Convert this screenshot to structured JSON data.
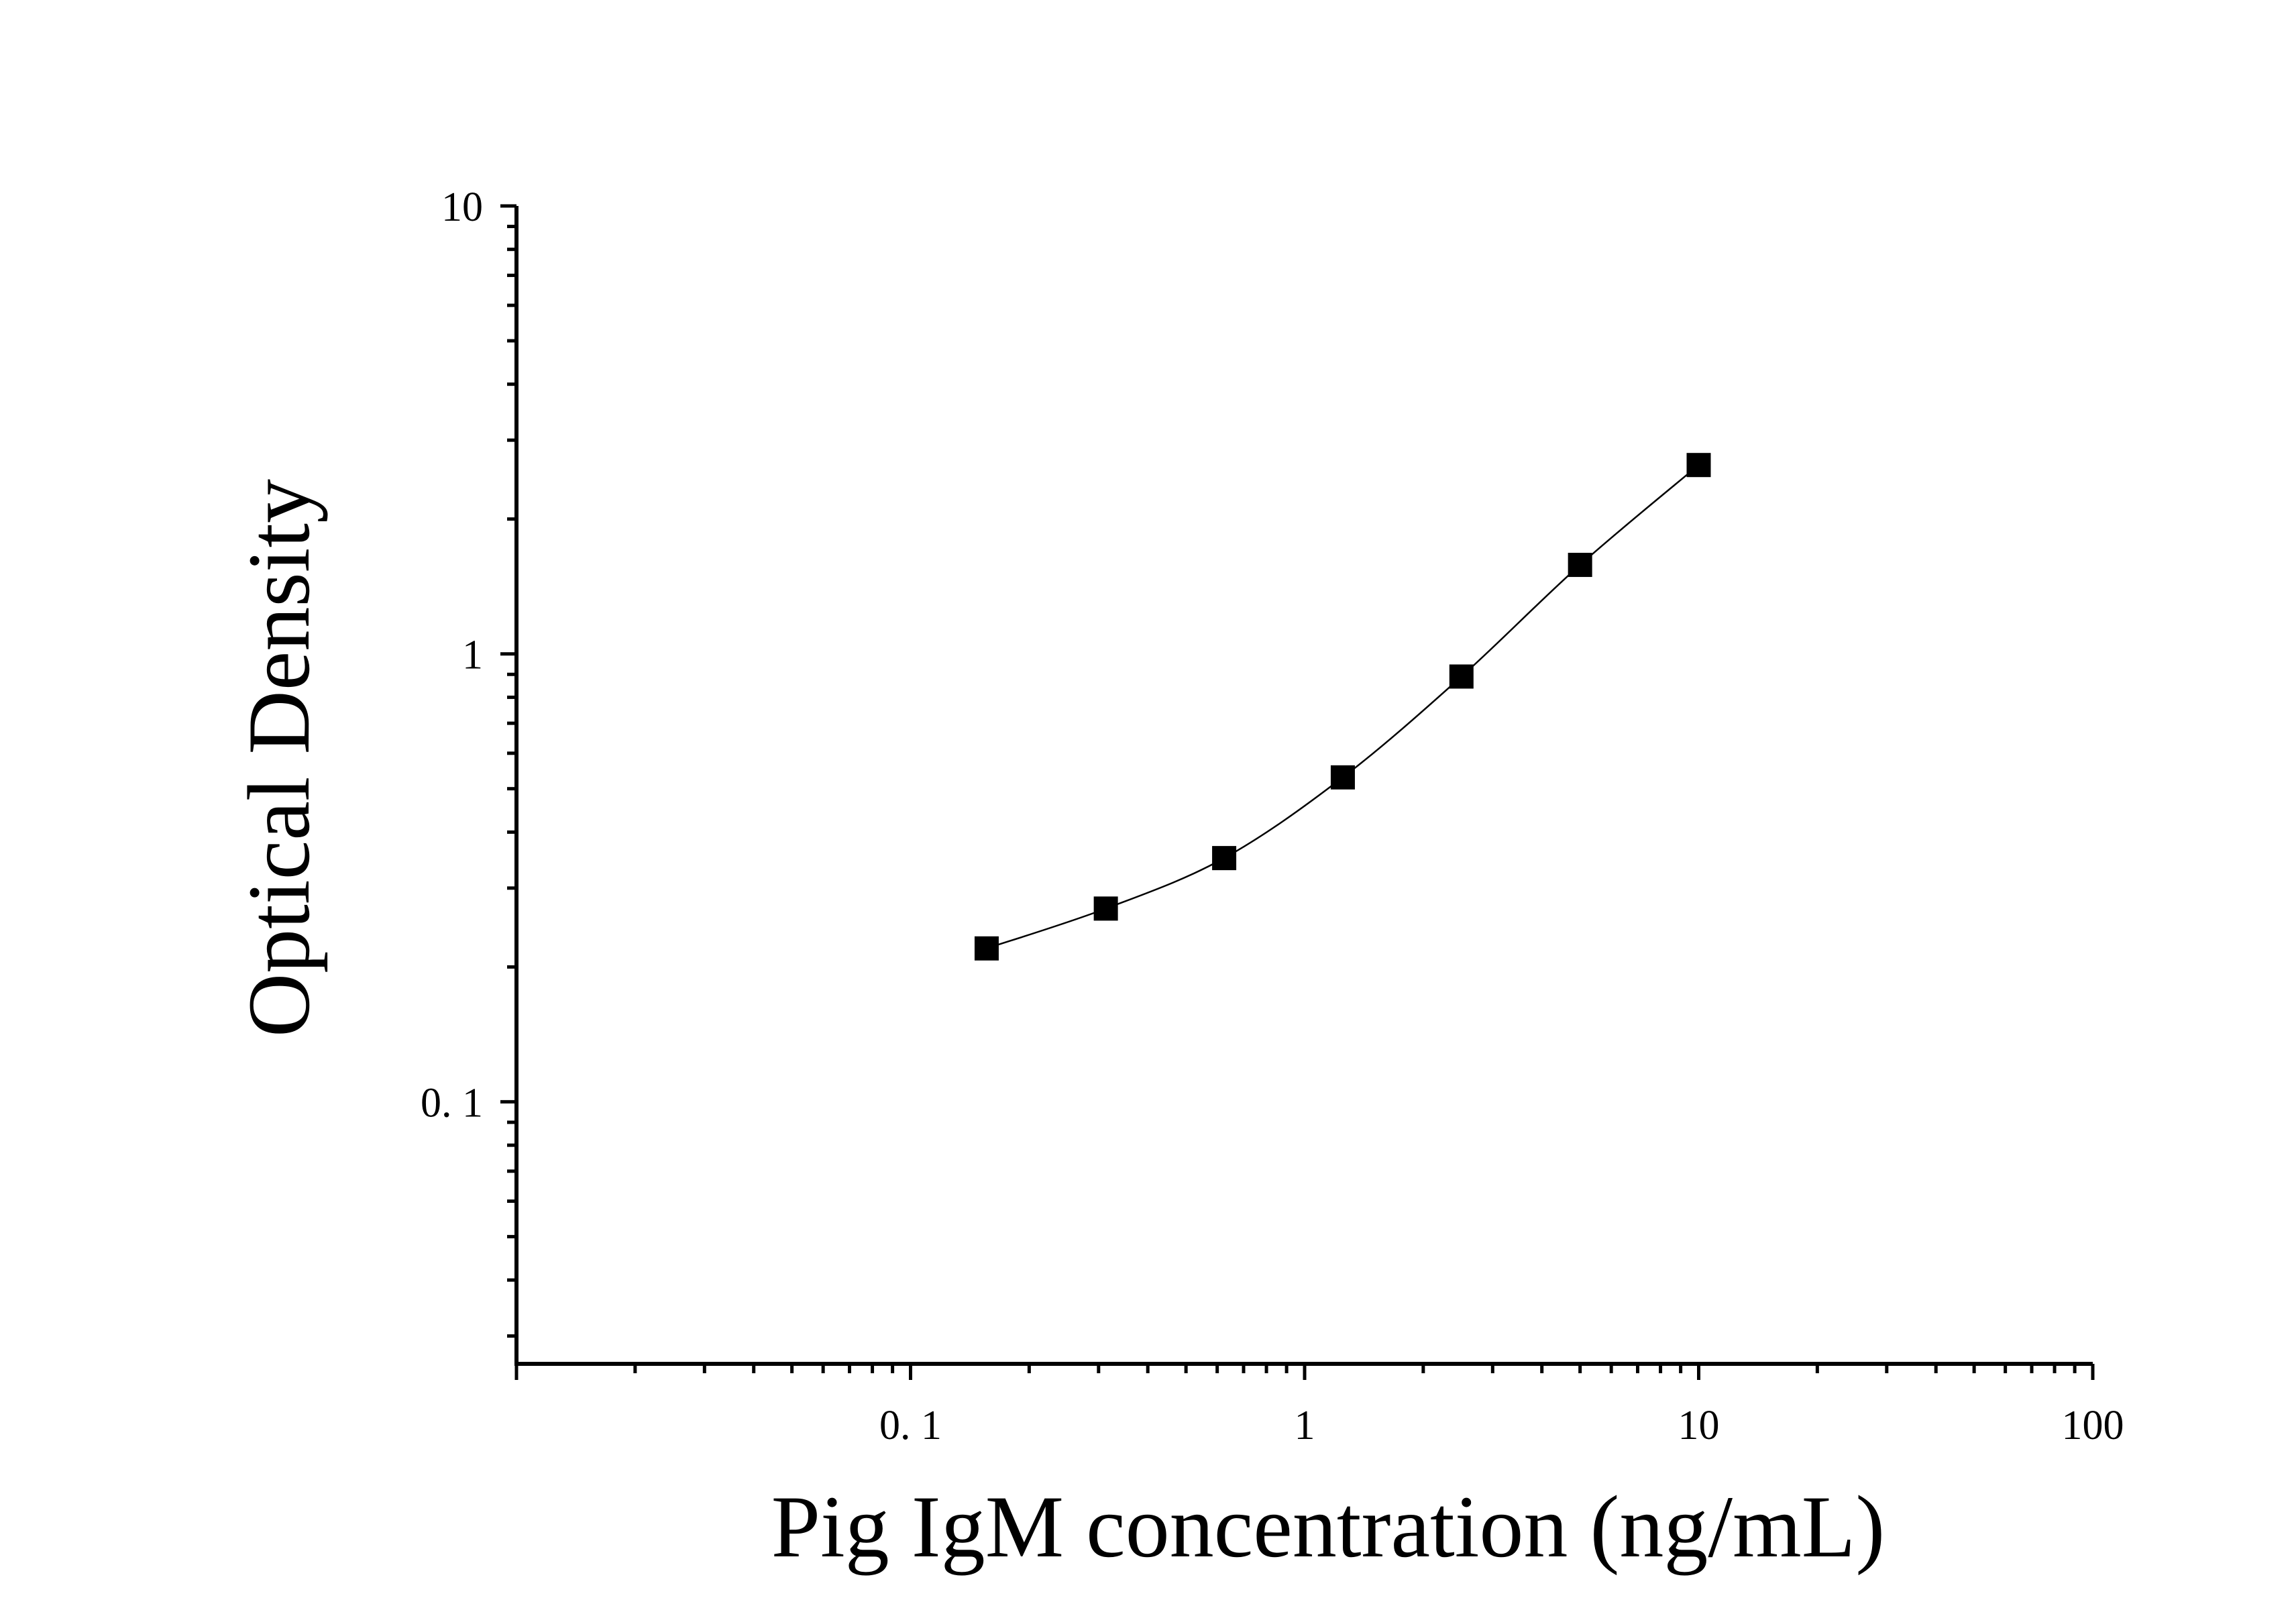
{
  "chart_data": {
    "type": "scatter",
    "x_scale": "log",
    "y_scale": "log",
    "xlabel": "Pig IgM concentration (ng/mL)",
    "ylabel": "Optical Density",
    "xlim": [
      0.01,
      100
    ],
    "ylim": [
      0.026,
      10
    ],
    "x_tick_labels": [
      {
        "value": 0.1,
        "label": "0. 1"
      },
      {
        "value": 1,
        "label": "1"
      },
      {
        "value": 10,
        "label": "10"
      },
      {
        "value": 100,
        "label": "100"
      }
    ],
    "y_tick_labels": [
      {
        "value": 0.1,
        "label": "0. 1"
      },
      {
        "value": 1,
        "label": "1"
      },
      {
        "value": 10,
        "label": "10"
      }
    ],
    "grid": false,
    "marker": "square",
    "series": [
      {
        "x": [
          0.156,
          0.313,
          0.625,
          1.25,
          2.5,
          5,
          10
        ],
        "y": [
          0.22,
          0.27,
          0.35,
          0.53,
          0.89,
          1.58,
          2.64
        ],
        "fit_line": true
      }
    ]
  }
}
